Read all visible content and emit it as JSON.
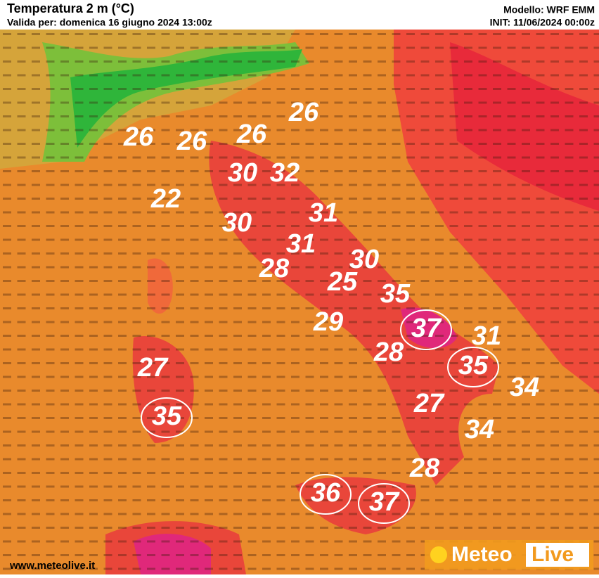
{
  "header": {
    "title": "Temperatura 2 m (°C)",
    "subtitle": "Valida per: domenica 16 giugno 2024 13:00z",
    "model": "Modello: WRF EMM",
    "init": "INIT: 11/06/2024 00:00z"
  },
  "map_labels": {
    "values": [
      26,
      26,
      26,
      26,
      30,
      32,
      22,
      31,
      30,
      31,
      30,
      28,
      25,
      35,
      29,
      37,
      31,
      28,
      27,
      35,
      34,
      35,
      27,
      34,
      28,
      36,
      37
    ],
    "circled": [
      false,
      false,
      false,
      false,
      false,
      false,
      false,
      false,
      false,
      false,
      false,
      false,
      false,
      false,
      false,
      true,
      false,
      false,
      false,
      true,
      false,
      true,
      false,
      false,
      false,
      true,
      true
    ]
  },
  "footer": {
    "website": "www.meteolive.it",
    "logo_left": "Meteo",
    "logo_right": "Live"
  }
}
